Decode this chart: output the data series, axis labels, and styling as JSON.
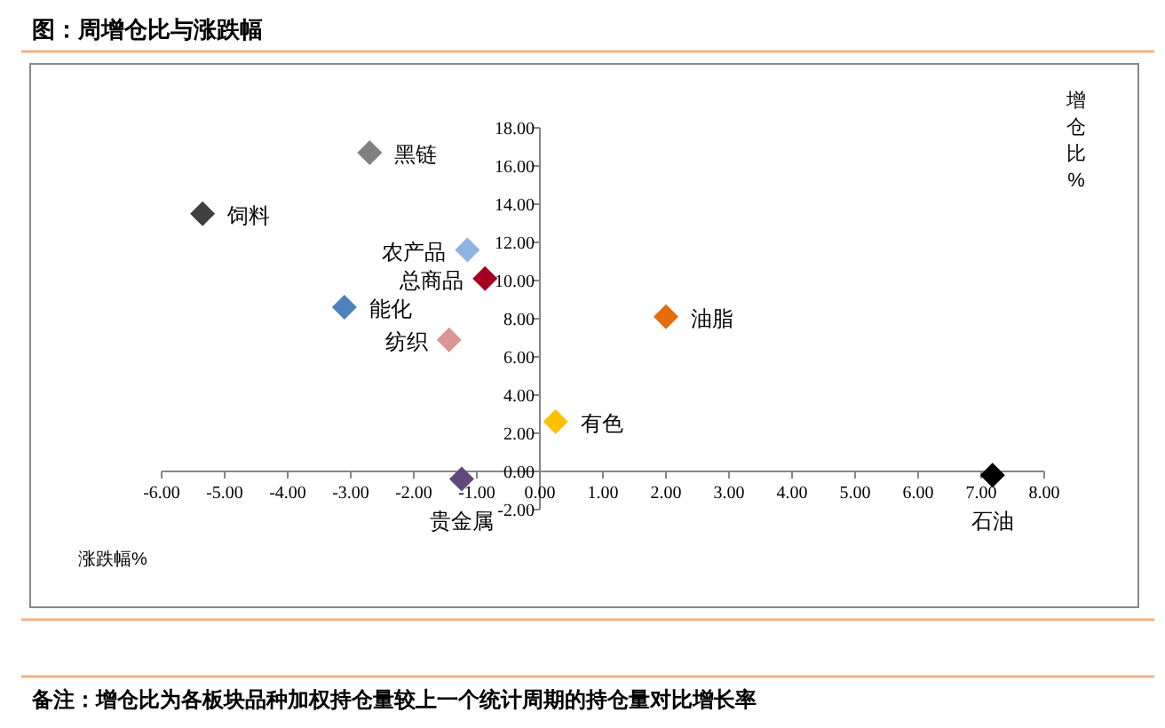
{
  "chart_data": {
    "type": "scatter",
    "title": "图：周增仓比与涨跌幅",
    "xlabel": "涨跌幅%",
    "ylabel": "增仓比%",
    "marker": "diamond",
    "grid": false,
    "xlim": [
      -6,
      8
    ],
    "ylim": [
      -2,
      18
    ],
    "xticks": [
      {
        "value": -6,
        "label": "-6.00"
      },
      {
        "value": -5,
        "label": "-5.00"
      },
      {
        "value": -4,
        "label": "-4.00"
      },
      {
        "value": -3,
        "label": "-3.00"
      },
      {
        "value": -2,
        "label": "-2.00"
      },
      {
        "value": -1,
        "label": "-1.00"
      },
      {
        "value": 0,
        "label": "0.00"
      },
      {
        "value": 1,
        "label": "1.00"
      },
      {
        "value": 2,
        "label": "2.00"
      },
      {
        "value": 3,
        "label": "3.00"
      },
      {
        "value": 4,
        "label": "4.00"
      },
      {
        "value": 5,
        "label": "5.00"
      },
      {
        "value": 6,
        "label": "6.00"
      },
      {
        "value": 7,
        "label": "7.00"
      },
      {
        "value": 8,
        "label": "8.00"
      }
    ],
    "yticks": [
      {
        "value": -2,
        "label": "-2.00"
      },
      {
        "value": 0,
        "label": "0.00"
      },
      {
        "value": 2,
        "label": "2.00"
      },
      {
        "value": 4,
        "label": "4.00"
      },
      {
        "value": 6,
        "label": "6.00"
      },
      {
        "value": 8,
        "label": "8.00"
      },
      {
        "value": 10,
        "label": "10.00"
      },
      {
        "value": 12,
        "label": "12.00"
      },
      {
        "value": 14,
        "label": "14.00"
      },
      {
        "value": 16,
        "label": "16.00"
      },
      {
        "value": 18,
        "label": "18.00"
      }
    ],
    "series": [
      {
        "name": "黑链",
        "color": "#808080",
        "x": [
          -2.7
        ],
        "values": [
          16.7
        ]
      },
      {
        "name": "饲料",
        "color": "#404040",
        "x": [
          -5.35
        ],
        "values": [
          13.5
        ]
      },
      {
        "name": "农产品",
        "color": "#8eb4e3",
        "x": [
          -1.15
        ],
        "values": [
          11.6
        ]
      },
      {
        "name": "总商品",
        "color": "#a50021",
        "x": [
          -0.87
        ],
        "values": [
          10.1
        ]
      },
      {
        "name": "能化",
        "color": "#4f81bd",
        "x": [
          -3.1
        ],
        "values": [
          8.6
        ]
      },
      {
        "name": "纺织",
        "color": "#d99694",
        "x": [
          -1.44
        ],
        "values": [
          6.9
        ]
      },
      {
        "name": "油脂",
        "color": "#e46c0a",
        "x": [
          2.0
        ],
        "values": [
          8.1
        ]
      },
      {
        "name": "有色",
        "color": "#ffc000",
        "x": [
          0.25
        ],
        "values": [
          2.6
        ]
      },
      {
        "name": "贵金属",
        "color": "#604a7b",
        "x": [
          -1.24
        ],
        "values": [
          -0.4
        ]
      },
      {
        "name": "石油",
        "color": "#000000",
        "x": [
          7.18
        ],
        "values": [
          -0.2
        ]
      }
    ],
    "annotations": [
      "备注：增仓比为各板块品种加权持仓量较上一个统计周期的持仓量对比增长率"
    ]
  }
}
